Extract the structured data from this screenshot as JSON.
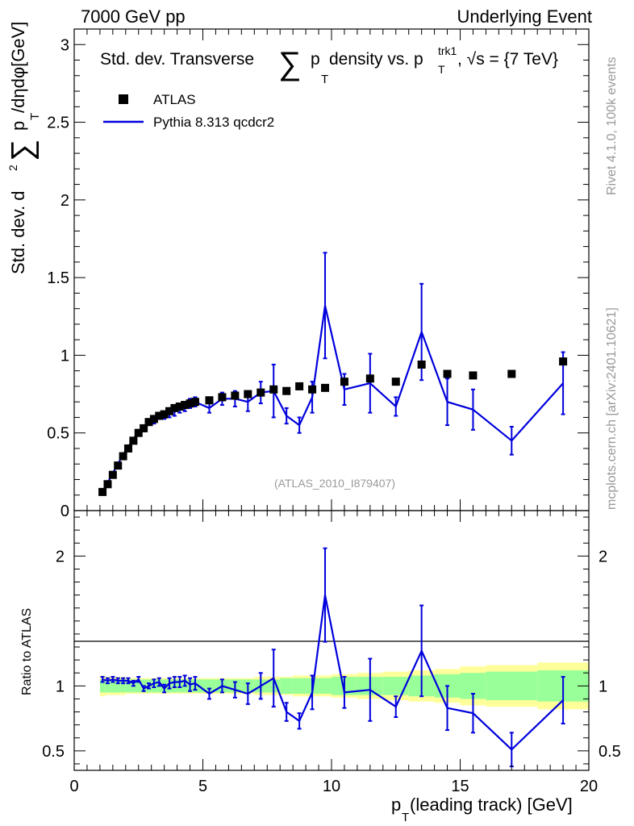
{
  "header": {
    "left": "7000 GeV pp",
    "right": "Underlying Event"
  },
  "side_labels": {
    "rivet": "Rivet 4.1.0,  100k events",
    "mcplots": "mcplots.cern.ch [arXiv:2401.10621]"
  },
  "colors": {
    "data": "#000000",
    "mc": "#0000dd",
    "band_inner": "#99ff99",
    "band_outer": "#ffff99",
    "label_gray": "#999999"
  },
  "chart_data": [
    {
      "type": "scatter+line",
      "panel": "main",
      "title": {
        "prefix": "Std. dev. Transverse",
        "sum": "∑",
        "p": "p",
        "T": "T",
        "mid": " density vs. p",
        "trk1": "trk1",
        "T2": "T",
        "suffix": ", √s = {7 TeV}"
      },
      "ylabel": {
        "prefix": "Std. dev. d",
        "sq": "2",
        "sum": "∑",
        "p": "p",
        "T": "T",
        "suffix": " /dηdφ[GeV]"
      },
      "watermark": "(ATLAS_2010_I879407)",
      "xlim": [
        0,
        20
      ],
      "ylim": [
        0,
        3.1
      ],
      "yticks": [
        0,
        0.5,
        1,
        1.5,
        2,
        2.5,
        3
      ],
      "ytick_labels": [
        "0",
        "0.5",
        "1",
        "1.5",
        "2",
        "2.5",
        "3"
      ],
      "legend": {
        "position": "top-left",
        "entries": [
          {
            "label": "ATLAS",
            "style": "marker"
          },
          {
            "label": "Pythia 8.313 qcdcr2",
            "style": "line"
          }
        ]
      },
      "series": [
        {
          "name": "ATLAS",
          "x": [
            1.1,
            1.3,
            1.5,
            1.7,
            1.9,
            2.1,
            2.3,
            2.5,
            2.7,
            2.9,
            3.1,
            3.3,
            3.5,
            3.7,
            3.9,
            4.1,
            4.3,
            4.5,
            4.7,
            5.25,
            5.75,
            6.25,
            6.75,
            7.25,
            7.75,
            8.25,
            8.75,
            9.25,
            9.75,
            10.5,
            11.5,
            12.5,
            13.5,
            14.5,
            15.5,
            17.0,
            19.0
          ],
          "y": [
            0.12,
            0.17,
            0.23,
            0.29,
            0.35,
            0.4,
            0.45,
            0.5,
            0.53,
            0.57,
            0.59,
            0.61,
            0.62,
            0.64,
            0.66,
            0.67,
            0.68,
            0.69,
            0.7,
            0.71,
            0.73,
            0.74,
            0.75,
            0.76,
            0.78,
            0.77,
            0.8,
            0.78,
            0.79,
            0.83,
            0.85,
            0.83,
            0.94,
            0.88,
            0.87,
            0.88,
            0.96
          ]
        },
        {
          "name": "Pythia 8.313 qcdcr2",
          "x": [
            1.1,
            1.3,
            1.5,
            1.7,
            1.9,
            2.1,
            2.3,
            2.5,
            2.7,
            2.9,
            3.1,
            3.3,
            3.5,
            3.7,
            3.9,
            4.1,
            4.3,
            4.5,
            4.7,
            5.25,
            5.75,
            6.25,
            6.75,
            7.25,
            7.75,
            8.25,
            8.75,
            9.25,
            9.75,
            10.5,
            11.5,
            12.5,
            13.5,
            14.5,
            15.5,
            17.0,
            19.0
          ],
          "y": [
            0.12,
            0.18,
            0.24,
            0.3,
            0.36,
            0.41,
            0.46,
            0.51,
            0.52,
            0.57,
            0.58,
            0.61,
            0.61,
            0.63,
            0.64,
            0.66,
            0.67,
            0.69,
            0.7,
            0.66,
            0.72,
            0.72,
            0.7,
            0.76,
            0.77,
            0.61,
            0.55,
            0.73,
            1.32,
            0.78,
            0.82,
            0.67,
            1.15,
            0.7,
            0.65,
            0.45,
            0.82
          ],
          "yerr": [
            0.01,
            0.01,
            0.01,
            0.01,
            0.01,
            0.01,
            0.01,
            0.01,
            0.01,
            0.02,
            0.02,
            0.02,
            0.02,
            0.03,
            0.03,
            0.03,
            0.03,
            0.03,
            0.03,
            0.03,
            0.04,
            0.05,
            0.06,
            0.07,
            0.17,
            0.05,
            0.05,
            0.1,
            0.34,
            0.1,
            0.19,
            0.06,
            0.31,
            0.15,
            0.13,
            0.09,
            0.2
          ]
        }
      ]
    },
    {
      "type": "ratio",
      "panel": "ratio",
      "ylabel": "Ratio to ATLAS",
      "xlabel": {
        "p": "p",
        "T": "T",
        "suffix": " (leading track) [GeV]"
      },
      "xlim": [
        0,
        20
      ],
      "ylim": [
        0.35,
        2.35
      ],
      "xticks": [
        0,
        5,
        10,
        15,
        20
      ],
      "xtick_labels": [
        "0",
        "5",
        "10",
        "15",
        "20"
      ],
      "yticks": [
        0.5,
        1,
        2
      ],
      "ytick_labels": [
        "0.5",
        "1",
        "2"
      ],
      "band_edges": [
        1.0,
        1.2,
        1.4,
        1.6,
        1.8,
        2.0,
        2.2,
        2.4,
        2.6,
        2.8,
        3.0,
        3.2,
        3.4,
        3.6,
        3.8,
        4.0,
        4.2,
        4.4,
        4.6,
        5.0,
        5.5,
        6.0,
        6.5,
        7.0,
        7.5,
        8.0,
        8.5,
        9.0,
        9.5,
        10.0,
        11.0,
        12.0,
        13.0,
        14.0,
        15.0,
        16.0,
        18.0,
        20.0
      ],
      "band_inner": [
        0.05,
        0.05,
        0.05,
        0.05,
        0.05,
        0.05,
        0.05,
        0.05,
        0.05,
        0.05,
        0.05,
        0.05,
        0.05,
        0.05,
        0.05,
        0.05,
        0.05,
        0.05,
        0.05,
        0.05,
        0.05,
        0.05,
        0.05,
        0.05,
        0.05,
        0.06,
        0.06,
        0.06,
        0.06,
        0.07,
        0.07,
        0.07,
        0.08,
        0.09,
        0.1,
        0.11,
        0.12
      ],
      "band_outer": [
        0.08,
        0.07,
        0.07,
        0.07,
        0.07,
        0.06,
        0.06,
        0.06,
        0.06,
        0.06,
        0.06,
        0.06,
        0.06,
        0.06,
        0.06,
        0.06,
        0.06,
        0.06,
        0.06,
        0.06,
        0.06,
        0.06,
        0.06,
        0.07,
        0.07,
        0.07,
        0.08,
        0.08,
        0.08,
        0.09,
        0.1,
        0.11,
        0.12,
        0.13,
        0.15,
        0.16,
        0.18
      ],
      "ratio_x": [
        1.1,
        1.3,
        1.5,
        1.7,
        1.9,
        2.1,
        2.3,
        2.5,
        2.7,
        2.9,
        3.1,
        3.3,
        3.5,
        3.7,
        3.9,
        4.1,
        4.3,
        4.5,
        4.7,
        5.25,
        5.75,
        6.25,
        6.75,
        7.25,
        7.75,
        8.25,
        8.75,
        9.25,
        9.75,
        10.5,
        11.5,
        12.5,
        13.5,
        14.5,
        15.5,
        17.0,
        19.0
      ],
      "ratio_y": [
        1.05,
        1.04,
        1.05,
        1.04,
        1.04,
        1.04,
        1.02,
        1.05,
        0.98,
        1.0,
        1.02,
        1.03,
        0.98,
        1.02,
        1.03,
        1.03,
        1.04,
        1.01,
        1.02,
        0.94,
        1.0,
        0.97,
        0.94,
        1.0,
        1.06,
        0.8,
        0.73,
        0.95,
        1.7,
        0.95,
        0.97,
        0.84,
        1.27,
        0.83,
        0.79,
        0.51,
        0.89
      ],
      "ratio_err": [
        0.02,
        0.02,
        0.02,
        0.02,
        0.02,
        0.02,
        0.02,
        0.02,
        0.02,
        0.02,
        0.03,
        0.03,
        0.03,
        0.04,
        0.04,
        0.04,
        0.04,
        0.05,
        0.05,
        0.04,
        0.05,
        0.06,
        0.08,
        0.1,
        0.22,
        0.07,
        0.06,
        0.13,
        0.36,
        0.12,
        0.24,
        0.08,
        0.35,
        0.17,
        0.15,
        0.13,
        0.18
      ]
    }
  ]
}
